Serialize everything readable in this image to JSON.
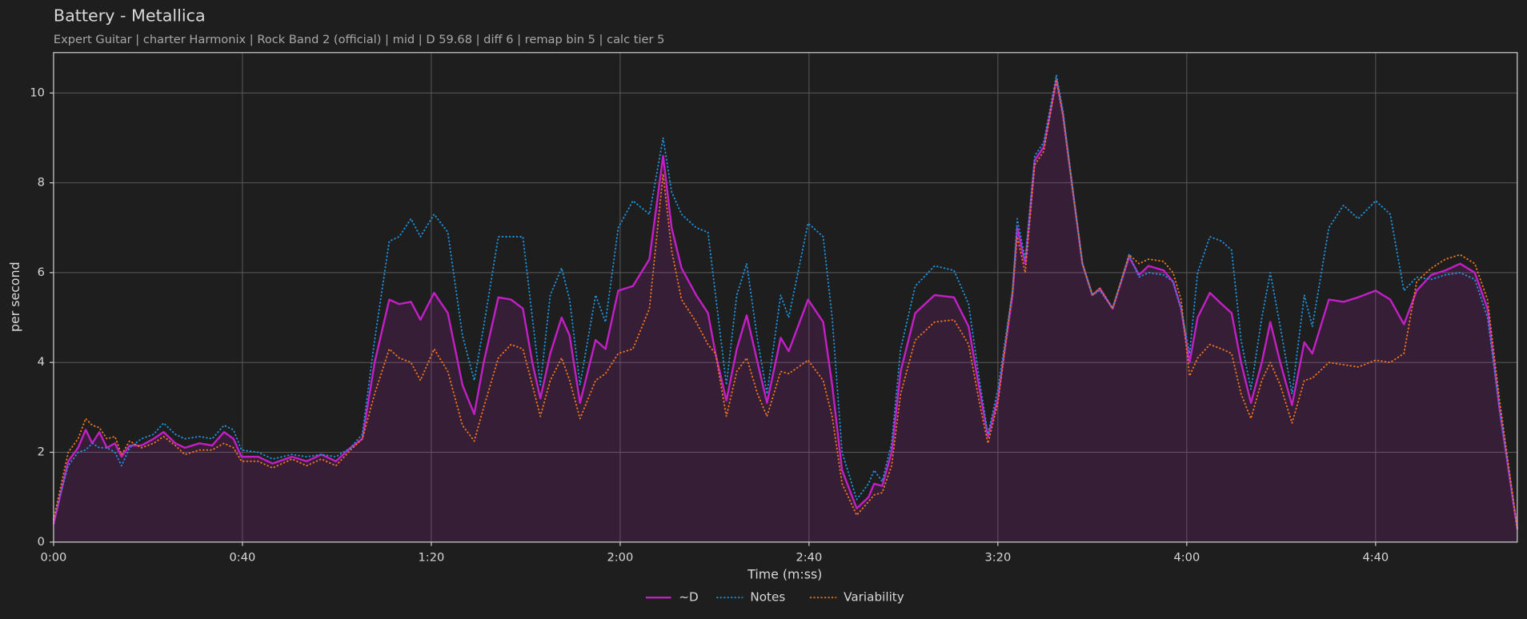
{
  "chart_data": {
    "type": "line",
    "title": "Battery - Metallica",
    "subtitle": "Expert Guitar  |  charter Harmonix  |  Rock Band 2 (official)  |  mid  |  D 59.68  |  diff 6  |  remap bin 5  |  calc tier 5",
    "x_label": "Time (m:ss)",
    "y_label": "per second",
    "xlim": [
      0,
      310
    ],
    "ylim": [
      0,
      10.9
    ],
    "xticks": [
      {
        "value": 0,
        "label": "0:00"
      },
      {
        "value": 40,
        "label": "0:40"
      },
      {
        "value": 80,
        "label": "1:20"
      },
      {
        "value": 120,
        "label": "2:00"
      },
      {
        "value": 160,
        "label": "2:40"
      },
      {
        "value": 200,
        "label": "3:20"
      },
      {
        "value": 240,
        "label": "4:00"
      },
      {
        "value": 280,
        "label": "4:40"
      }
    ],
    "yticks": [
      0,
      2,
      4,
      6,
      8,
      10
    ],
    "grid": true,
    "legend": "bottom",
    "x": [
      0,
      3.1,
      5.2,
      6.8,
      8.2,
      9.7,
      11.3,
      13,
      14.4,
      16.1,
      18.6,
      21.2,
      23.3,
      25.8,
      27.8,
      30.9,
      33.6,
      36.1,
      38.1,
      39.8,
      43.3,
      46.4,
      50.5,
      53.6,
      56.7,
      59.8,
      62.9,
      65.4,
      68,
      71.1,
      73.2,
      75.7,
      77.7,
      80.6,
      83.5,
      86.6,
      89.1,
      91.1,
      94.2,
      96.9,
      99.4,
      101.4,
      103.1,
      105.2,
      107.6,
      109.3,
      111.5,
      114.8,
      116.9,
      119.6,
      122.7,
      126.2,
      129.1,
      130.9,
      133,
      136.1,
      138.6,
      140.2,
      142.5,
      144.7,
      146.8,
      149.1,
      151.1,
      154,
      155.7,
      159.8,
      163,
      164.9,
      167,
      170.1,
      172.6,
      173.8,
      175.5,
      177.5,
      179.4,
      182.5,
      186.6,
      190.7,
      193.8,
      196.1,
      197.9,
      200,
      203.1,
      204.1,
      205.8,
      207.8,
      209.7,
      212.4,
      213.8,
      215.9,
      217.9,
      220,
      221.6,
      224.3,
      227.8,
      229.9,
      231.9,
      235.1,
      237.1,
      238.8,
      240.6,
      242.3,
      244.9,
      247.4,
      249.5,
      251.5,
      253.6,
      255.9,
      257.7,
      259.8,
      262.3,
      264.9,
      266.6,
      270.1,
      273.2,
      276.3,
      280,
      283.1,
      286,
      288.7,
      291.8,
      294.8,
      297.9,
      301,
      303.7,
      306.2,
      310
    ],
    "series": [
      {
        "name": "~D",
        "color": "#c21fc4",
        "style": "solid",
        "fill": true,
        "values": [
          0.4,
          1.8,
          2.1,
          2.5,
          2.2,
          2.45,
          2.1,
          2.2,
          1.9,
          2.15,
          2.15,
          2.3,
          2.45,
          2.2,
          2.1,
          2.2,
          2.15,
          2.45,
          2.3,
          1.9,
          1.9,
          1.75,
          1.9,
          1.8,
          1.95,
          1.8,
          2.1,
          2.3,
          4.0,
          5.4,
          5.3,
          5.35,
          4.95,
          5.55,
          5.1,
          3.5,
          2.85,
          4.0,
          5.45,
          5.4,
          5.2,
          4.0,
          3.2,
          4.2,
          5.0,
          4.6,
          3.1,
          4.5,
          4.3,
          5.6,
          5.7,
          6.3,
          8.6,
          7.0,
          6.1,
          5.5,
          5.1,
          4.2,
          3.15,
          4.3,
          5.05,
          4.0,
          3.1,
          4.55,
          4.25,
          5.4,
          4.9,
          3.5,
          1.6,
          0.75,
          1.0,
          1.3,
          1.25,
          2.0,
          3.8,
          5.1,
          5.5,
          5.45,
          4.8,
          3.4,
          2.35,
          3.2,
          5.5,
          7.0,
          6.2,
          8.5,
          8.8,
          10.3,
          9.5,
          7.8,
          6.2,
          5.5,
          5.65,
          5.2,
          6.35,
          5.95,
          6.15,
          6.05,
          5.8,
          5.2,
          4.0,
          5.0,
          5.55,
          5.3,
          5.1,
          4.0,
          3.1,
          4.0,
          4.9,
          4.0,
          3.05,
          4.45,
          4.2,
          5.4,
          5.35,
          5.45,
          5.6,
          5.4,
          4.85,
          5.6,
          5.95,
          6.05,
          6.2,
          6.0,
          5.2,
          3.0,
          0.3
        ]
      },
      {
        "name": "Notes",
        "color": "#1f8fd6",
        "style": "dotted",
        "fill": false,
        "values": [
          0.5,
          1.7,
          2.0,
          2.05,
          2.2,
          2.1,
          2.1,
          2.0,
          1.7,
          2.1,
          2.3,
          2.4,
          2.65,
          2.4,
          2.3,
          2.35,
          2.3,
          2.6,
          2.5,
          2.05,
          2.0,
          1.85,
          1.95,
          1.9,
          1.95,
          1.9,
          2.1,
          2.4,
          4.5,
          6.7,
          6.8,
          7.2,
          6.8,
          7.3,
          6.9,
          4.6,
          3.6,
          4.8,
          6.8,
          6.8,
          6.8,
          5.0,
          3.5,
          5.5,
          6.1,
          5.4,
          3.5,
          5.5,
          4.9,
          7.0,
          7.6,
          7.3,
          9.0,
          7.8,
          7.3,
          7.0,
          6.9,
          5.5,
          3.5,
          5.5,
          6.2,
          4.5,
          3.3,
          5.5,
          5.0,
          7.1,
          6.8,
          5.0,
          2.0,
          0.95,
          1.3,
          1.6,
          1.35,
          2.2,
          4.3,
          5.7,
          6.15,
          6.05,
          5.3,
          3.6,
          2.4,
          3.4,
          5.6,
          7.2,
          6.3,
          8.6,
          8.9,
          10.4,
          9.6,
          7.8,
          6.2,
          5.5,
          5.6,
          5.2,
          6.4,
          5.9,
          6.0,
          5.95,
          5.8,
          5.2,
          4.2,
          6.0,
          6.8,
          6.7,
          6.5,
          4.5,
          3.4,
          5.0,
          6.0,
          4.8,
          3.3,
          5.5,
          4.8,
          7.0,
          7.5,
          7.2,
          7.6,
          7.3,
          5.6,
          5.9,
          5.85,
          5.95,
          6.0,
          5.85,
          5.0,
          3.0,
          0.3
        ]
      },
      {
        "name": "Variability",
        "color": "#e8731f",
        "style": "dotted",
        "fill": false,
        "values": [
          0.5,
          2.0,
          2.3,
          2.75,
          2.6,
          2.55,
          2.3,
          2.35,
          1.95,
          2.25,
          2.1,
          2.2,
          2.35,
          2.15,
          1.95,
          2.05,
          2.05,
          2.2,
          2.1,
          1.8,
          1.8,
          1.65,
          1.85,
          1.7,
          1.85,
          1.7,
          2.05,
          2.3,
          3.3,
          4.3,
          4.1,
          4.0,
          3.6,
          4.3,
          3.8,
          2.6,
          2.25,
          3.0,
          4.1,
          4.4,
          4.3,
          3.5,
          2.8,
          3.6,
          4.1,
          3.6,
          2.75,
          3.6,
          3.75,
          4.2,
          4.3,
          5.2,
          8.2,
          6.5,
          5.4,
          4.9,
          4.4,
          4.2,
          2.8,
          3.8,
          4.1,
          3.3,
          2.8,
          3.8,
          3.75,
          4.05,
          3.6,
          2.8,
          1.3,
          0.6,
          0.9,
          1.05,
          1.1,
          1.7,
          3.3,
          4.5,
          4.9,
          4.95,
          4.4,
          3.1,
          2.2,
          3.1,
          5.6,
          6.8,
          6.0,
          8.4,
          8.7,
          10.3,
          9.5,
          7.8,
          6.2,
          5.5,
          5.65,
          5.2,
          6.4,
          6.2,
          6.3,
          6.25,
          6.0,
          5.4,
          3.7,
          4.1,
          4.4,
          4.3,
          4.2,
          3.3,
          2.75,
          3.6,
          4.0,
          3.5,
          2.65,
          3.6,
          3.65,
          4.0,
          3.95,
          3.9,
          4.05,
          4.0,
          4.2,
          5.8,
          6.1,
          6.3,
          6.4,
          6.2,
          5.4,
          3.2,
          0.3
        ]
      }
    ]
  }
}
